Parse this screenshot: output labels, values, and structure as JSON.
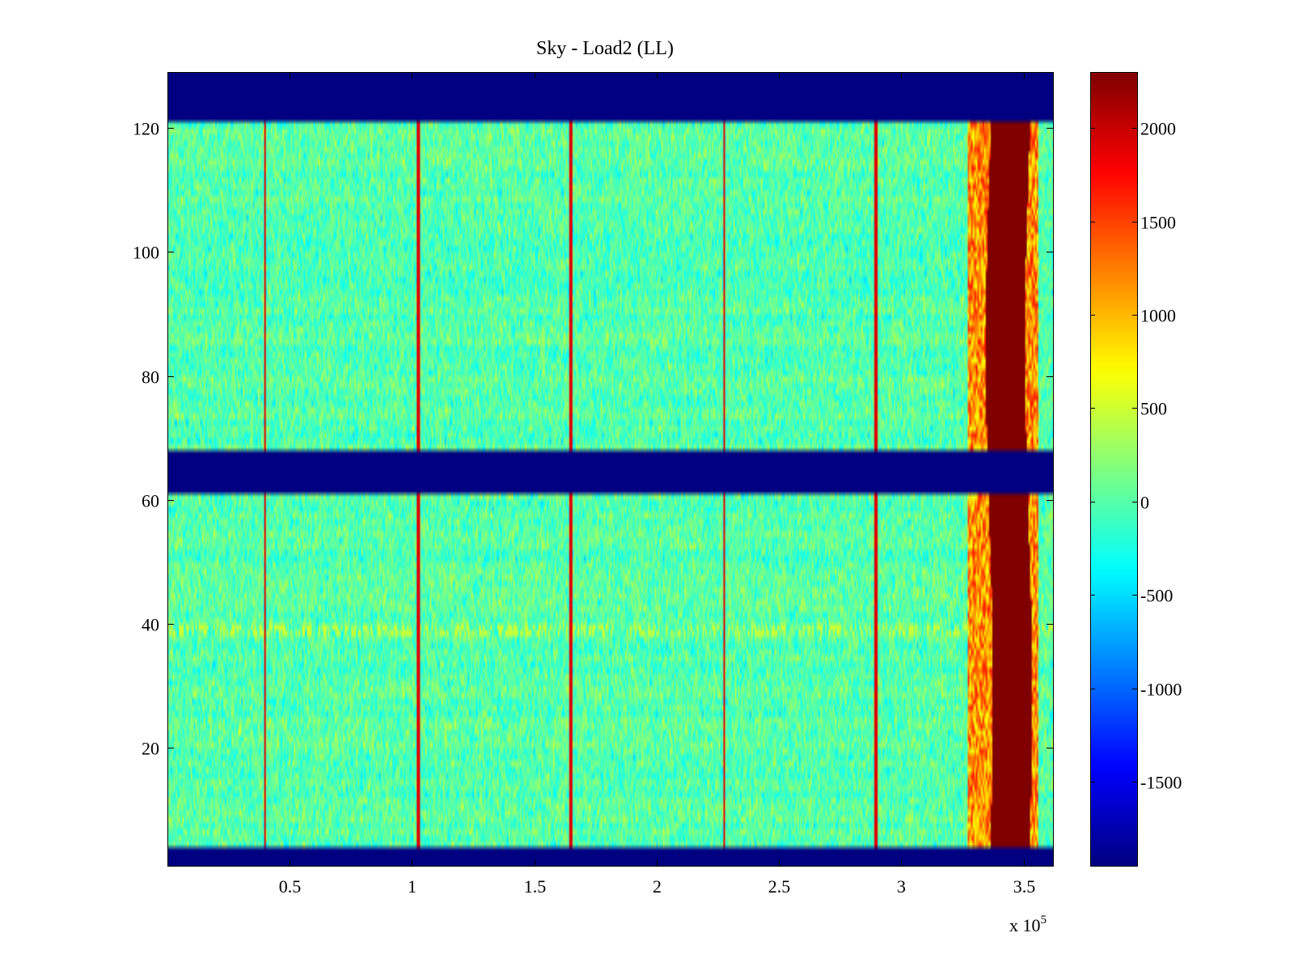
{
  "chart_data": {
    "type": "heatmap",
    "title": "Sky - Load2 (LL)",
    "xlabel": "",
    "ylabel": "",
    "x_multiplier_label": "x 10",
    "x_multiplier_exponent": "5",
    "xlim": [
      0,
      3.62
    ],
    "ylim": [
      1,
      129
    ],
    "xticks": [
      0.5,
      1,
      1.5,
      2,
      2.5,
      3,
      3.5
    ],
    "xtick_labels": [
      "0.5",
      "1",
      "1.5",
      "2",
      "2.5",
      "3",
      "3.5"
    ],
    "yticks": [
      20,
      40,
      60,
      80,
      100,
      120
    ],
    "ytick_labels": [
      "20",
      "40",
      "60",
      "80",
      "100",
      "120"
    ],
    "colormap": "jet",
    "clim": [
      -1950,
      2300
    ],
    "colorbar_ticks": [
      2000,
      1500,
      1000,
      500,
      0,
      -500,
      -1000,
      -1500
    ],
    "colorbar_labels": [
      "2000",
      "1500",
      "1000",
      "500",
      "0",
      "-500",
      "-1000",
      "-1500"
    ],
    "masked_rows": [
      {
        "from": 1,
        "to": 4,
        "value": -1950
      },
      {
        "from": 61.5,
        "to": 67.5,
        "value": -1950
      },
      {
        "from": 121.5,
        "to": 129,
        "value": -1950
      }
    ],
    "background_value_range": [
      -600,
      600
    ],
    "spike_columns_x": [
      0.4,
      1.025,
      1.65,
      2.275,
      2.895
    ],
    "spike_value": 1900,
    "hot_band": {
      "x_from": 3.36,
      "x_to": 3.52,
      "value": 2300
    },
    "hot_band_fringe": {
      "x_from": 3.27,
      "x_to": 3.56,
      "value_range": [
        600,
        1700
      ]
    },
    "annotation_row_y": 39,
    "annotation_row_value": 500
  }
}
